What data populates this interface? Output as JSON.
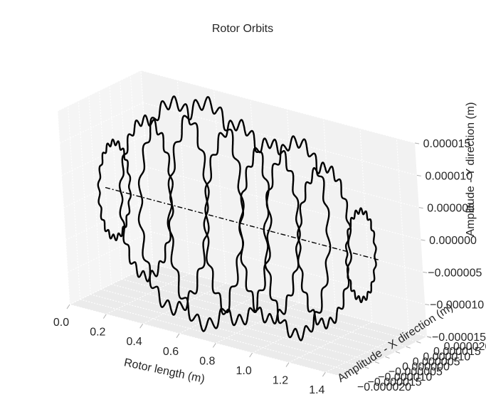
{
  "chart_data": {
    "type": "line3d",
    "title": "Rotor Orbits",
    "xlabel": "Rotor length (m)",
    "ylabel": "Amplitude - X direction (m)",
    "zlabel": "Amplitude - Y direction (m)",
    "x_ticks": [
      "0.0",
      "0.2",
      "0.4",
      "0.6",
      "0.8",
      "1.0",
      "1.2",
      "1.4"
    ],
    "y_ticks": [
      "−0.000020",
      "−0.000015",
      "−0.000010",
      "−0.000005",
      "0.000000",
      "0.000005",
      "0.000010",
      "0.000015",
      "0.000020"
    ],
    "z_ticks": [
      "−0.000015",
      "−0.000010",
      "−0.000005",
      "0.000000",
      "0.000005",
      "0.000010",
      "0.000015"
    ],
    "x_range": [
      0.0,
      1.5
    ],
    "y_range": [
      -2e-05,
      2e-05
    ],
    "z_range": [
      -1.5e-05,
      1.5e-05
    ],
    "grid": true,
    "series": [
      {
        "line_color": "#000000",
        "line_style": "solid",
        "orbits": [
          {
            "x": 0.05,
            "amplitude": 7.3e-06
          },
          {
            "x": 0.225,
            "amplitude": 1.2e-05
          },
          {
            "x": 0.375,
            "amplitude": 1.58e-05
          },
          {
            "x": 0.55,
            "amplitude": 1.7e-05
          },
          {
            "x": 0.725,
            "amplitude": 1.5e-05
          },
          {
            "x": 0.9,
            "amplitude": 1.35e-05
          },
          {
            "x": 1.05,
            "amplitude": 1.48e-05
          },
          {
            "x": 1.2,
            "amplitude": 1.2e-05
          },
          {
            "x": 1.4,
            "amplitude": 6.8e-06
          }
        ]
      },
      {
        "line_color": "#000000",
        "line_style": "dashdot",
        "x": [
          0.0,
          1.5
        ],
        "y": [
          0.0,
          0.0
        ],
        "z": [
          0.0,
          0.0
        ]
      }
    ]
  }
}
